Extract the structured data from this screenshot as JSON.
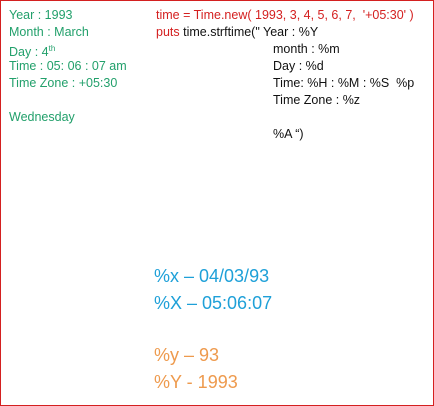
{
  "facts": [
    "Year : 1993",
    "Month : March",
    "Day : 4",
    "Time : 05: 06 : 07 am",
    "Time Zone : +05:30",
    "Wednesday"
  ],
  "day_suffix": "th",
  "code": {
    "line1": "time = Time.new( 1993, 3, 4, 5, 6, 7,  '+05:30' )",
    "keyword": "puts",
    "line2": "time.strftime(\" Year : %Y",
    "format_lines": [
      "month : %m",
      "Day : %d",
      "Time: %H : %M : %S  %p",
      "Time Zone : %z",
      "%A “)"
    ]
  },
  "results_blue": [
    "%x – 04/03/93",
    "%X – 05:06:07"
  ],
  "results_orange": [
    "%y – 93",
    "%Y - 1993"
  ]
}
